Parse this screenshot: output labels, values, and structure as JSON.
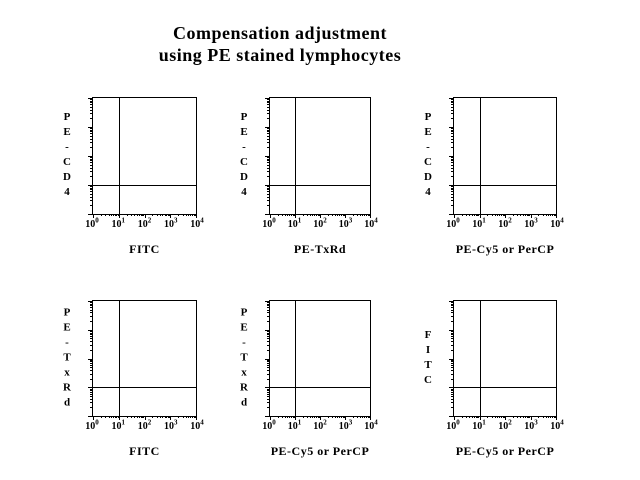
{
  "title": {
    "line1": "Compensation adjustment",
    "line2": "using PE stained lymphocytes"
  },
  "colors": {
    "background": "#ffffff",
    "ink": "#000000"
  },
  "chart_data": [
    {
      "type": "scatter",
      "xlabel": "FITC",
      "ylabel": "PE-CD4",
      "xscale": "log",
      "yscale": "log",
      "xlim": [
        1,
        10000
      ],
      "ylim": [
        1,
        10000
      ],
      "xtick_labels": [
        "10^0",
        "10^1",
        "10^2",
        "10^3",
        "10^4"
      ],
      "ytick_labels": [],
      "quadrant_gate": {
        "x": 10,
        "y": 10
      },
      "points": [],
      "grid": false
    },
    {
      "type": "scatter",
      "xlabel": "PE-TxRd",
      "ylabel": "PE-CD4",
      "xscale": "log",
      "yscale": "log",
      "xlim": [
        1,
        10000
      ],
      "ylim": [
        1,
        10000
      ],
      "xtick_labels": [
        "10^0",
        "10^1",
        "10^2",
        "10^3",
        "10^4"
      ],
      "ytick_labels": [],
      "quadrant_gate": {
        "x": 10,
        "y": 10
      },
      "points": [],
      "grid": false
    },
    {
      "type": "scatter",
      "xlabel": "PE-Cy5 or PerCP",
      "ylabel": "PE-CD4",
      "xscale": "log",
      "yscale": "log",
      "xlim": [
        1,
        10000
      ],
      "ylim": [
        1,
        10000
      ],
      "xtick_labels": [
        "10^0",
        "10^1",
        "10^2",
        "10^3",
        "10^4"
      ],
      "ytick_labels": [],
      "quadrant_gate": {
        "x": 10,
        "y": 10
      },
      "points": [],
      "grid": false
    },
    {
      "type": "scatter",
      "xlabel": "FITC",
      "ylabel": "PE-TxRd",
      "xscale": "log",
      "yscale": "log",
      "xlim": [
        1,
        10000
      ],
      "ylim": [
        1,
        10000
      ],
      "xtick_labels": [
        "10^0",
        "10^1",
        "10^2",
        "10^3",
        "10^4"
      ],
      "ytick_labels": [],
      "quadrant_gate": {
        "x": 10,
        "y": 10
      },
      "points": [],
      "grid": false
    },
    {
      "type": "scatter",
      "xlabel": "PE-Cy5 or PerCP",
      "ylabel": "PE-TxRd",
      "xscale": "log",
      "yscale": "log",
      "xlim": [
        1,
        10000
      ],
      "ylim": [
        1,
        10000
      ],
      "xtick_labels": [
        "10^0",
        "10^1",
        "10^2",
        "10^3",
        "10^4"
      ],
      "ytick_labels": [],
      "quadrant_gate": {
        "x": 10,
        "y": 10
      },
      "points": [],
      "grid": false
    },
    {
      "type": "scatter",
      "xlabel": "PE-Cy5 or PerCP",
      "ylabel": "FITC",
      "xscale": "log",
      "yscale": "log",
      "xlim": [
        1,
        10000
      ],
      "ylim": [
        1,
        10000
      ],
      "xtick_labels": [
        "10^0",
        "10^1",
        "10^2",
        "10^3",
        "10^4"
      ],
      "ytick_labels": [],
      "quadrant_gate": {
        "x": 10,
        "y": 10
      },
      "points": [],
      "grid": false
    }
  ]
}
